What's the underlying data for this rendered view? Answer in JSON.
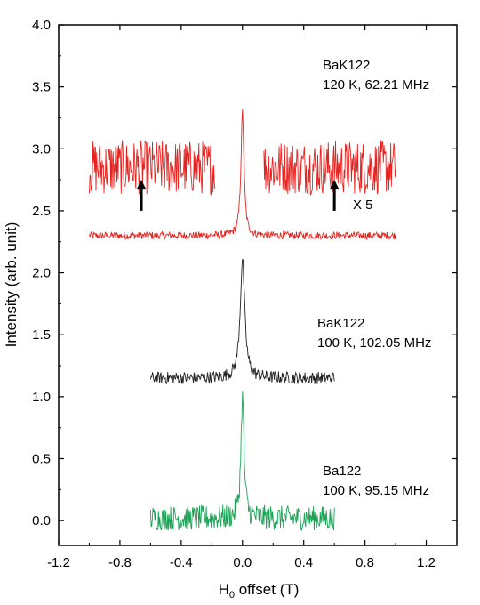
{
  "chart_data": {
    "type": "line",
    "xlabel_main": "H",
    "xlabel_sub": "0",
    "xlabel_rest": " offset (T)",
    "ylabel": "Intensity (arb. unit)",
    "xlim": [
      -1.2,
      1.4
    ],
    "ylim": [
      -0.2,
      4.0
    ],
    "x_ticks": [
      -1.2,
      -0.8,
      -0.4,
      0.0,
      0.4,
      0.8,
      1.2
    ],
    "x_tick_labels": [
      "-1.2",
      "-0.8",
      "-0.4",
      "0.0",
      "0.4",
      "0.8",
      "1.2"
    ],
    "y_ticks": [
      0.0,
      0.5,
      1.0,
      1.5,
      2.0,
      2.5,
      3.0,
      3.5,
      4.0
    ],
    "y_tick_labels": [
      "0.0",
      "0.5",
      "1.0",
      "1.5",
      "2.0",
      "2.5",
      "3.0",
      "3.5",
      "4.0"
    ],
    "grid": false,
    "series": [
      {
        "color": "#e8231f",
        "baseline": 2.3,
        "peak_x": 0.0,
        "peak_y": 3.3,
        "x_range": [
          -1.0,
          1.0
        ],
        "noise": 0.03,
        "label_line1": "BaK122",
        "label_line2": "120 K, 62.21 MHz"
      },
      {
        "color": "#e8231f",
        "role": "x5 magnified wings",
        "baseline": 2.85,
        "noise": 0.22,
        "segments": [
          [
            -1.0,
            -0.18
          ],
          [
            0.14,
            1.0
          ]
        ]
      },
      {
        "color": "#222222",
        "baseline": 1.15,
        "peak_x": 0.0,
        "peak_y": 2.1,
        "x_range": [
          -0.6,
          0.6
        ],
        "noise": 0.05,
        "label_line1": "BaK122",
        "label_line2": "100 K, 102.05 MHz"
      },
      {
        "color": "#1aa355",
        "baseline": 0.02,
        "peak_x": 0.0,
        "peak_y": 1.0,
        "x_range": [
          -0.6,
          0.6
        ],
        "noise": 0.1,
        "label_line1": "Ba122",
        "label_line2": "100 K, 95.15 MHz"
      }
    ],
    "annotations": {
      "magnification": "X 5",
      "arrows_x": [
        -0.66,
        0.6
      ],
      "arrow_y_from": 2.5,
      "arrow_y_to": 2.75
    }
  }
}
